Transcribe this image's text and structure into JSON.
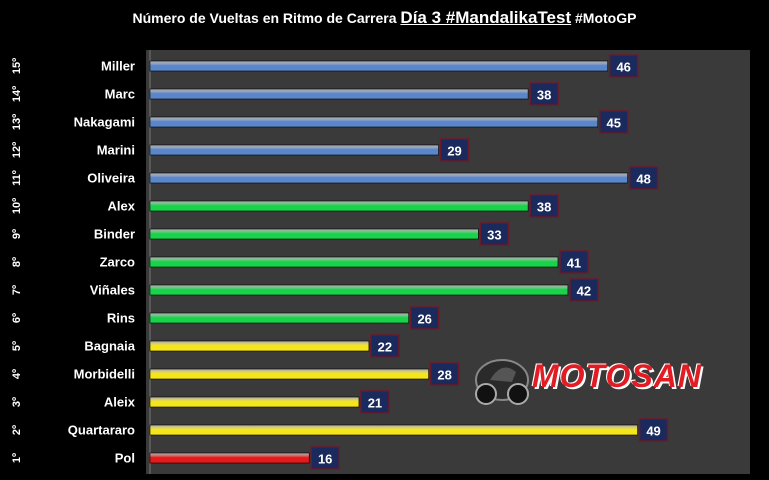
{
  "title": {
    "prefix": "Número de Vueltas en Ritmo de Carrera",
    "main": "Día 3 #MandalikaTest",
    "suffix": "#MotoGP"
  },
  "logo": {
    "text": "MOTOSAN",
    "icon": "motorbike-rider-icon"
  },
  "colors": {
    "blue": "#5b86c9",
    "green": "#19d44a",
    "yellow": "#f5e61a",
    "red": "#e51a1a",
    "plot_bg": "#3a3a3a",
    "label_box": "#1b2a5c"
  },
  "chart_data": {
    "type": "bar",
    "orientation": "horizontal",
    "title": "Número de Vueltas en Ritmo de Carrera Día 3 #MandalikaTest #MotoGP",
    "categories": [
      "Miller",
      "Marc",
      "Nakagami",
      "Marini",
      "Oliveira",
      "Alex",
      "Binder",
      "Zarco",
      "Viñales",
      "Rins",
      "Bagnaia",
      "Morbidelli",
      "Aleix",
      "Quartararo",
      "Pol"
    ],
    "ranks": [
      "15º",
      "14º",
      "13º",
      "12º",
      "11º",
      "10º",
      "9º",
      "8º",
      "7º",
      "6º",
      "5º",
      "4º",
      "3º",
      "2º",
      "1º"
    ],
    "values": [
      46,
      38,
      45,
      29,
      48,
      38,
      33,
      41,
      42,
      26,
      22,
      28,
      21,
      49,
      16
    ],
    "color_groups": [
      "blue",
      "blue",
      "blue",
      "blue",
      "blue",
      "green",
      "green",
      "green",
      "green",
      "green",
      "yellow",
      "yellow",
      "yellow",
      "yellow",
      "red"
    ],
    "xlim": [
      0,
      50
    ],
    "grid": false,
    "data_labels": true
  }
}
